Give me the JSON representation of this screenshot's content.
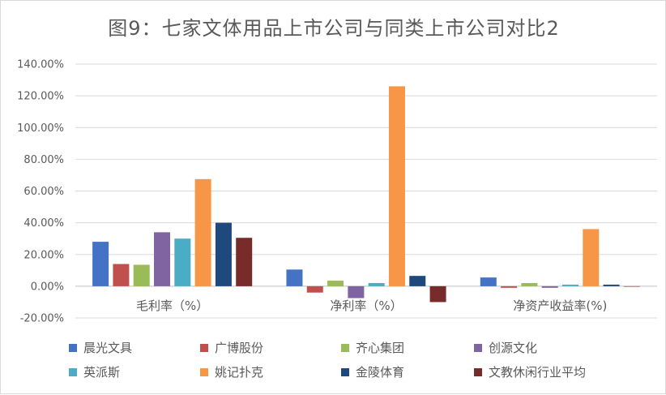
{
  "chart_data": {
    "type": "bar",
    "title": "图9：七家文体用品上市公司与同类上市公司对比2",
    "categories": [
      "毛利率（%）",
      "净利率（%）",
      "净资产收益率(%)"
    ],
    "y_tick_labels": [
      "-20.00%",
      "0.00%",
      "20.00%",
      "40.00%",
      "60.00%",
      "80.00%",
      "100.00%",
      "120.00%",
      "140.00%"
    ],
    "ylim": [
      -20,
      140
    ],
    "grid": true,
    "legend_position": "bottom",
    "series": [
      {
        "name": "晨光文具",
        "color": "#4472c4",
        "values": [
          28,
          10.5,
          5.5
        ]
      },
      {
        "name": "广博股份",
        "color": "#c0504d",
        "values": [
          14,
          -4,
          -1
        ]
      },
      {
        "name": "齐心集团",
        "color": "#9bbb59",
        "values": [
          13.5,
          3.5,
          2
        ]
      },
      {
        "name": "创源文化",
        "color": "#8064a2",
        "values": [
          34,
          -7.5,
          -1
        ]
      },
      {
        "name": "英派斯",
        "color": "#4bacc6",
        "values": [
          30,
          2,
          1
        ]
      },
      {
        "name": "姚记扑克",
        "color": "#f79646",
        "values": [
          67.5,
          126,
          36
        ]
      },
      {
        "name": "金陵体育",
        "color": "#1f497d",
        "values": [
          40,
          6.5,
          1
        ]
      },
      {
        "name": "文教休闲行业平均",
        "color": "#772c2a",
        "values": [
          30.5,
          -10,
          0
        ]
      }
    ]
  }
}
